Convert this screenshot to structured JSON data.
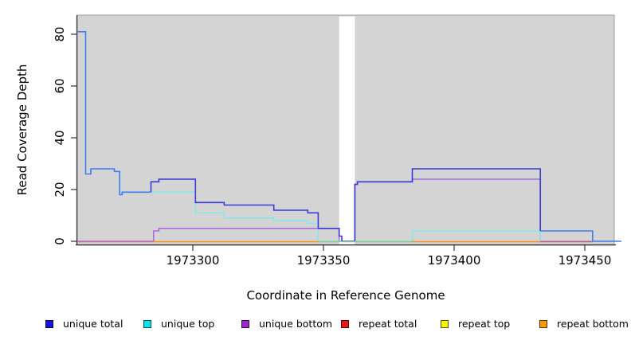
{
  "chart_data": {
    "type": "line",
    "subtype": "step-coverage",
    "title": "",
    "x_axis": {
      "label": "Coordinate in Reference Genome",
      "range": [
        1973256,
        1973461
      ],
      "ticks": [
        {
          "pos": 1973300,
          "label": "1973300"
        },
        {
          "pos": 1973350,
          "label": "1973350"
        },
        {
          "pos": 1973400,
          "label": "1973400"
        },
        {
          "pos": 1973450,
          "label": "1973450"
        }
      ]
    },
    "y_axis": {
      "label": "Read Coverage Depth",
      "range": [
        0,
        87
      ],
      "ticks": [
        {
          "pos": 0,
          "label": "0"
        },
        {
          "pos": 20,
          "label": "20"
        },
        {
          "pos": 40,
          "label": "40"
        },
        {
          "pos": 60,
          "label": "60"
        },
        {
          "pos": 80,
          "label": "80"
        }
      ]
    },
    "gap_region": {
      "from": 1973356,
      "to": 1973362
    },
    "series": [
      {
        "name": "unique total",
        "color": "#1616d9",
        "steps": [
          [
            1973256,
            81
          ],
          [
            1973259,
            26
          ],
          [
            1973261,
            28
          ],
          [
            1973270,
            27
          ],
          [
            1973272,
            18
          ],
          [
            1973273,
            19
          ],
          [
            1973284,
            23
          ],
          [
            1973287,
            24
          ],
          [
            1973301,
            15
          ],
          [
            1973312,
            14
          ],
          [
            1973331,
            12
          ],
          [
            1973344,
            11
          ],
          [
            1973348,
            5
          ],
          [
            1973356,
            2
          ],
          [
            1973357,
            0
          ],
          [
            1973362,
            22
          ],
          [
            1973363,
            23
          ],
          [
            1973384,
            28
          ],
          [
            1973433,
            4
          ],
          [
            1973453,
            0
          ],
          [
            1973464,
            0
          ]
        ]
      },
      {
        "name": "unique top",
        "color": "#00e5e5",
        "steps": [
          [
            1973272,
            19
          ],
          [
            1973301,
            11
          ],
          [
            1973312,
            9
          ],
          [
            1973331,
            8
          ],
          [
            1973344,
            7
          ],
          [
            1973348,
            0
          ],
          [
            1973384,
            4
          ],
          [
            1973433,
            0
          ],
          [
            1973453,
            0
          ]
        ]
      },
      {
        "name": "unique bottom",
        "color": "#9c27cc",
        "steps": [
          [
            1973256,
            0
          ],
          [
            1973285,
            4
          ],
          [
            1973287,
            5
          ],
          [
            1973356,
            0
          ],
          [
            1973362,
            22
          ],
          [
            1973363,
            23
          ],
          [
            1973384,
            24
          ],
          [
            1973433,
            0
          ],
          [
            1973453,
            0
          ]
        ]
      },
      {
        "name": "repeat total",
        "color": "#e51c1c",
        "steps": [
          [
            1973256,
            0
          ],
          [
            1973453,
            0
          ]
        ]
      },
      {
        "name": "repeat top",
        "color": "#f7f700",
        "steps": [
          [
            1973256,
            0
          ],
          [
            1973461,
            0
          ]
        ]
      },
      {
        "name": "repeat bottom",
        "color": "#ff9800",
        "steps": [
          [
            1973285,
            0
          ],
          [
            1973433,
            0
          ]
        ]
      }
    ],
    "legend": {
      "position": "bottom",
      "entries": [
        {
          "label": "unique total",
          "color": "#1616d9"
        },
        {
          "label": "unique top",
          "color": "#00e5e5"
        },
        {
          "label": "unique bottom",
          "color": "#9c27cc"
        },
        {
          "label": "repeat total",
          "color": "#e51c1c"
        },
        {
          "label": "repeat top",
          "color": "#f7f700"
        },
        {
          "label": "repeat bottom",
          "color": "#ff9800"
        }
      ]
    }
  },
  "render": {
    "line_width": 1.6,
    "colors": {
      "panel": "#d4d4d4",
      "panel_border": "#9c9c9c",
      "axis": "#333333",
      "gap": "#ffffff"
    },
    "paths": [
      {
        "series": "unique bottom",
        "color": "#a86ee0",
        "steps": [
          [
            1973256,
            0
          ],
          [
            1973285,
            4
          ],
          [
            1973287,
            5
          ],
          [
            1973356,
            0
          ],
          [
            1973362,
            22
          ],
          [
            1973363,
            23
          ],
          [
            1973384,
            24
          ],
          [
            1973433,
            0
          ],
          [
            1973453,
            0
          ]
        ]
      },
      {
        "series": "unique top",
        "color": "#85e8e8",
        "steps": [
          [
            1973272,
            19
          ],
          [
            1973301,
            11
          ],
          [
            1973312,
            9
          ],
          [
            1973331,
            8
          ],
          [
            1973344,
            7
          ],
          [
            1973348,
            0
          ],
          [
            1973384,
            4
          ],
          [
            1973433,
            0
          ],
          [
            1973453,
            0
          ]
        ]
      },
      {
        "series": "unique total",
        "part": "mid",
        "color": "#3a3ad6",
        "steps": [
          [
            1973284,
            19
          ],
          [
            1973284,
            23
          ],
          [
            1973287,
            24
          ],
          [
            1973301,
            15
          ],
          [
            1973312,
            14
          ],
          [
            1973331,
            12
          ],
          [
            1973344,
            11
          ],
          [
            1973348,
            5
          ],
          [
            1973356,
            2
          ],
          [
            1973357,
            0
          ],
          [
            1973362,
            22
          ],
          [
            1973363,
            23
          ],
          [
            1973384,
            28
          ],
          [
            1973433,
            4
          ]
        ]
      },
      {
        "series": "unique total",
        "part": "left",
        "color": "#3f7df0",
        "steps": [
          [
            1973256,
            81
          ],
          [
            1973259,
            26
          ],
          [
            1973261,
            28
          ],
          [
            1973270,
            27
          ],
          [
            1973272,
            18
          ],
          [
            1973273,
            19
          ],
          [
            1973284,
            19
          ]
        ]
      },
      {
        "series": "unique total",
        "part": "right",
        "color": "#3f7df0",
        "steps": [
          [
            1973433,
            4
          ],
          [
            1973453,
            0
          ],
          [
            1973464,
            0
          ]
        ]
      }
    ],
    "baseline_segments": [
      {
        "from": 1973256,
        "to": 1973285,
        "color": "#d2679b"
      },
      {
        "from": 1973285,
        "to": 1973348,
        "color": "#ff9413"
      },
      {
        "from": 1973348,
        "to": 1973384,
        "color": "#8ec98e"
      },
      {
        "from": 1973384,
        "to": 1973433,
        "color": "#ff9413"
      },
      {
        "from": 1973433,
        "to": 1973453,
        "color": "#d6527a"
      }
    ],
    "legend_item_lefts": [
      57,
      180,
      303,
      428,
      553,
      677
    ]
  }
}
